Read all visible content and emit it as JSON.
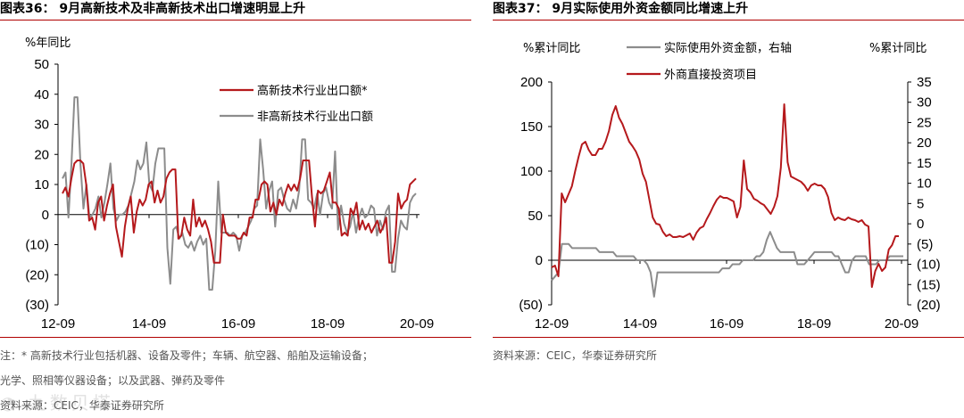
{
  "chart_data": [
    {
      "type": "line",
      "title": "图表36： 9月高新技术及非高新技术出口增速明显上升",
      "ylabel": "%年同比",
      "ylim": [
        -30,
        50
      ],
      "yticks": [
        "(30)",
        "(20)",
        "(10)",
        "0",
        "10",
        "20",
        "30",
        "40",
        "50"
      ],
      "yticks_values": [
        -30,
        -20,
        -10,
        0,
        10,
        20,
        30,
        40,
        50
      ],
      "xticks": [
        "12-09",
        "14-09",
        "16-09",
        "18-09",
        "20-09"
      ],
      "legend_position": "top-right",
      "series": [
        {
          "name": "高新技术行业出口额*",
          "color": "#b5191c",
          "values": [
            7,
            9,
            6,
            12,
            17,
            18,
            18,
            17,
            10,
            -2,
            -1,
            -5,
            4,
            6,
            -2,
            3,
            7,
            10,
            -4,
            -9,
            -14,
            -4,
            2,
            6,
            -6,
            1,
            5,
            3,
            5,
            10,
            11,
            4,
            8,
            4,
            6,
            12,
            14,
            15,
            15,
            -8,
            -7,
            -1,
            -5,
            -7,
            5,
            -4,
            -1,
            -4,
            -2,
            -5,
            -9,
            -16,
            -16,
            -16,
            0,
            -6,
            -7,
            -7,
            -7,
            -8,
            -8,
            -6,
            -7,
            -1,
            -1,
            5,
            5,
            10,
            11,
            10,
            1,
            4,
            0,
            5,
            3,
            7,
            10,
            8,
            10,
            8,
            12,
            18,
            18,
            18,
            6,
            -4,
            8,
            7,
            8,
            11,
            14,
            4,
            4,
            2,
            -7,
            -6,
            -7,
            2,
            0,
            4,
            -5,
            -2,
            -5,
            -3,
            -6,
            -4,
            -2,
            -6,
            -4,
            -1,
            -16,
            -16,
            -9,
            7,
            2,
            4,
            5,
            10,
            11,
            12
          ]
        },
        {
          "name": "非高新技术行业出口额",
          "color": "#8c8c8c",
          "values": [
            12,
            14,
            -1,
            17,
            39,
            39,
            17,
            2,
            10,
            -1,
            0,
            2,
            6,
            -1,
            4,
            10,
            17,
            2,
            -2,
            0,
            0,
            1,
            3,
            7,
            11,
            18,
            15,
            17,
            24,
            10,
            8,
            17,
            22,
            22,
            22,
            -11,
            -23,
            -5,
            -4,
            -8,
            -6,
            -10,
            -11,
            -9,
            -12,
            -9,
            -7,
            -10,
            -8,
            -25,
            -25,
            -12,
            11,
            -6,
            -6,
            -6,
            -7,
            -6,
            -7,
            -12,
            -7,
            -6,
            -4,
            -2,
            2,
            3,
            25,
            15,
            2,
            8,
            11,
            -4,
            8,
            9,
            5,
            2,
            1,
            5,
            2,
            8,
            25,
            25,
            5,
            4,
            2,
            7,
            0,
            7,
            9,
            4,
            2,
            21,
            -5,
            3,
            -3,
            -6,
            -4,
            1,
            -6,
            -1,
            2,
            -1,
            0,
            3,
            2,
            -7,
            -2,
            -5,
            1,
            3,
            -19,
            -19,
            -8,
            -2,
            -4,
            -5,
            4,
            6,
            7
          ]
        }
      ],
      "notes": [
        "注：* 高新技术行业包括机器、设备及零件；车辆、航空器、船舶及运输设备；",
        "光学、照相等仪器设备；以及武器、弹药及零件",
        "资料来源：CEIC，华泰证券研究所"
      ]
    },
    {
      "type": "line",
      "title": "图表37： 9月实际使用外资金额同比增速上升",
      "ylabel": "%累计同比",
      "ylabel_right": "%累计同比",
      "ylim": [
        -50,
        200
      ],
      "ylim_right": [
        -20,
        35
      ],
      "yticks": [
        "(50)",
        "0",
        "50",
        "100",
        "150",
        "200"
      ],
      "yticks_values": [
        -50,
        0,
        50,
        100,
        150,
        200
      ],
      "yticks_right": [
        "(20)",
        "(15)",
        "(10)",
        "(5)",
        "0",
        "5",
        "10",
        "15",
        "20",
        "25",
        "30",
        "35"
      ],
      "yticks_right_values": [
        -20,
        -15,
        -10,
        -5,
        0,
        5,
        10,
        15,
        20,
        25,
        30,
        35
      ],
      "xticks": [
        "12-09",
        "14-09",
        "16-09",
        "18-09",
        "20-09"
      ],
      "legend_position": "top-center",
      "series": [
        {
          "name": "实际使用外资金额，右轴",
          "color": "#8c8c8c",
          "axis": "right",
          "values": [
            -14,
            -13,
            -12,
            -5,
            -5,
            -5,
            -6,
            -6,
            -6,
            -6,
            -6,
            -6,
            -6,
            -6,
            -7,
            -7,
            -7,
            -7,
            -7,
            -8,
            -8,
            -8,
            -8,
            -8,
            -8,
            -9,
            -9,
            -9,
            -10,
            -12,
            -18,
            -12,
            -12,
            -12,
            -12,
            -12,
            -12,
            -12,
            -12,
            -12,
            -12,
            -12,
            -12,
            -12,
            -12,
            -12,
            -12,
            -12,
            -12,
            -12,
            -11,
            -11,
            -11,
            -10,
            -10,
            -10,
            -9,
            -9,
            -9,
            -9,
            -8,
            -8,
            -7,
            -4,
            -2,
            -4,
            -6,
            -7,
            -7,
            -7,
            -7,
            -7,
            -10,
            -10,
            -10,
            -9,
            -8,
            -7,
            -7,
            -7,
            -7,
            -7,
            -7,
            -8,
            -8,
            -10,
            -12,
            -12,
            -9,
            -8,
            -8,
            -8,
            -8,
            -10,
            -10,
            -10,
            -9,
            -9,
            -9,
            -8,
            -8,
            -8,
            -8,
            -8
          ]
        },
        {
          "name": "外商直接投资项目",
          "color": "#b5191c",
          "axis": "left",
          "values": [
            -8,
            -6,
            -18,
            75,
            65,
            74,
            83,
            100,
            116,
            130,
            133,
            124,
            118,
            118,
            125,
            125,
            133,
            145,
            163,
            173,
            160,
            153,
            143,
            133,
            128,
            122,
            113,
            97,
            88,
            68,
            48,
            41,
            40,
            32,
            27,
            29,
            26,
            26,
            27,
            26,
            28,
            30,
            23,
            31,
            36,
            38,
            46,
            53,
            61,
            68,
            72,
            70,
            70,
            68,
            66,
            48,
            60,
            112,
            80,
            76,
            69,
            67,
            64,
            62,
            57,
            52,
            60,
            72,
            104,
            175,
            110,
            94,
            92,
            90,
            88,
            84,
            78,
            84,
            86,
            84,
            84,
            80,
            71,
            53,
            45,
            48,
            46,
            45,
            48,
            46,
            45,
            43,
            45,
            40,
            38,
            -30,
            -12,
            -4,
            -12,
            -8,
            12,
            17,
            27,
            27
          ]
        }
      ],
      "notes": [
        "资料来源：CEIC，华泰证券研究所"
      ]
    }
  ],
  "watermark": "九数贝塔"
}
